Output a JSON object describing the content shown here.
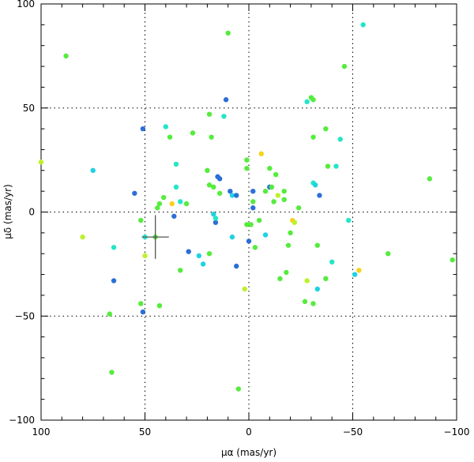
{
  "chart_data": {
    "type": "scatter",
    "title": "",
    "xlabel": "μα (mas/yr)",
    "ylabel": "μδ (mas/yr)",
    "xlim": [
      100,
      -100
    ],
    "ylim": [
      -100,
      100
    ],
    "xticks": [
      "100",
      "50",
      "0",
      "−50",
      "−100"
    ],
    "yticks": [
      "−100",
      "−50",
      "0",
      "50",
      "100"
    ],
    "xtick_values": [
      100,
      50,
      0,
      -50,
      -100
    ],
    "ytick_values": [
      -100,
      -50,
      0,
      50,
      100
    ],
    "grid": "dotted at ±50 and 0",
    "legend": "none",
    "colors": {
      "blue": "#2b6fd6",
      "cyan": "#1fd2e3",
      "aqua": "#22e6c8",
      "green": "#55ec3d",
      "lime": "#bcf22a",
      "yellow": "#f7d21a"
    },
    "marker": {
      "x": 45,
      "y": -12,
      "err_x": 6.5,
      "err_y": 10.5
    },
    "points": [
      {
        "x": 88,
        "y": 75,
        "c": "green"
      },
      {
        "x": 10,
        "y": 86,
        "c": "green"
      },
      {
        "x": -55,
        "y": 90,
        "c": "aqua"
      },
      {
        "x": 100,
        "y": 24,
        "c": "lime"
      },
      {
        "x": 75,
        "y": 20,
        "c": "cyan"
      },
      {
        "x": 80,
        "y": -12,
        "c": "lime"
      },
      {
        "x": 65,
        "y": -17,
        "c": "aqua"
      },
      {
        "x": 65,
        "y": -33,
        "c": "blue"
      },
      {
        "x": 67,
        "y": -49,
        "c": "green"
      },
      {
        "x": 66,
        "y": -77,
        "c": "green"
      },
      {
        "x": 55,
        "y": 9,
        "c": "blue"
      },
      {
        "x": 51,
        "y": 40,
        "c": "blue"
      },
      {
        "x": 52,
        "y": -4,
        "c": "green"
      },
      {
        "x": 50,
        "y": -12,
        "c": "aqua"
      },
      {
        "x": 50,
        "y": -21,
        "c": "lime"
      },
      {
        "x": 52,
        "y": -44,
        "c": "green"
      },
      {
        "x": 51,
        "y": -48,
        "c": "blue"
      },
      {
        "x": 45,
        "y": -12,
        "c": "green"
      },
      {
        "x": 44,
        "y": 2,
        "c": "green"
      },
      {
        "x": 43,
        "y": 4,
        "c": "green"
      },
      {
        "x": 41,
        "y": 7,
        "c": "green"
      },
      {
        "x": 40,
        "y": 41,
        "c": "aqua"
      },
      {
        "x": 38,
        "y": 36,
        "c": "green"
      },
      {
        "x": 37,
        "y": 4,
        "c": "yellow"
      },
      {
        "x": 36,
        "y": -2,
        "c": "blue"
      },
      {
        "x": 35,
        "y": 23,
        "c": "aqua"
      },
      {
        "x": 35,
        "y": 12,
        "c": "aqua"
      },
      {
        "x": 33,
        "y": 5,
        "c": "aqua"
      },
      {
        "x": 33,
        "y": -28,
        "c": "green"
      },
      {
        "x": 43,
        "y": -45,
        "c": "green"
      },
      {
        "x": 30,
        "y": 4,
        "c": "green"
      },
      {
        "x": 29,
        "y": -19,
        "c": "blue"
      },
      {
        "x": 27,
        "y": 38,
        "c": "green"
      },
      {
        "x": 24,
        "y": -21,
        "c": "cyan"
      },
      {
        "x": 22,
        "y": -25,
        "c": "cyan"
      },
      {
        "x": 20,
        "y": 20,
        "c": "green"
      },
      {
        "x": 19,
        "y": 13,
        "c": "green"
      },
      {
        "x": 19,
        "y": 47,
        "c": "green"
      },
      {
        "x": 18,
        "y": 36,
        "c": "green"
      },
      {
        "x": 19,
        "y": -20,
        "c": "green"
      },
      {
        "x": 17,
        "y": -1,
        "c": "cyan"
      },
      {
        "x": 16,
        "y": -5,
        "c": "blue"
      },
      {
        "x": 16,
        "y": -3,
        "c": "aqua"
      },
      {
        "x": 17,
        "y": 12,
        "c": "green"
      },
      {
        "x": 15,
        "y": 17,
        "c": "blue"
      },
      {
        "x": 14,
        "y": 16,
        "c": "blue"
      },
      {
        "x": 14,
        "y": 9,
        "c": "green"
      },
      {
        "x": 12,
        "y": 46,
        "c": "aqua"
      },
      {
        "x": 11,
        "y": 54,
        "c": "blue"
      },
      {
        "x": 9,
        "y": 10,
        "c": "blue"
      },
      {
        "x": 8,
        "y": 8,
        "c": "cyan"
      },
      {
        "x": 8,
        "y": -12,
        "c": "cyan"
      },
      {
        "x": 6,
        "y": 8,
        "c": "blue"
      },
      {
        "x": 6,
        "y": -26,
        "c": "blue"
      },
      {
        "x": 5,
        "y": -85,
        "c": "green"
      },
      {
        "x": 2,
        "y": -37,
        "c": "lime"
      },
      {
        "x": 1,
        "y": 25,
        "c": "green"
      },
      {
        "x": 1,
        "y": 21,
        "c": "green"
      },
      {
        "x": 1,
        "y": -6,
        "c": "green"
      },
      {
        "x": 0,
        "y": -14,
        "c": "blue"
      },
      {
        "x": -1,
        "y": -6,
        "c": "green"
      },
      {
        "x": -2,
        "y": 10,
        "c": "blue"
      },
      {
        "x": -2,
        "y": 5,
        "c": "green"
      },
      {
        "x": -2,
        "y": 2,
        "c": "blue"
      },
      {
        "x": -3,
        "y": -17,
        "c": "green"
      },
      {
        "x": -5,
        "y": -4,
        "c": "green"
      },
      {
        "x": -6,
        "y": 28,
        "c": "yellow"
      },
      {
        "x": -8,
        "y": 10,
        "c": "green"
      },
      {
        "x": -8,
        "y": -11,
        "c": "cyan"
      },
      {
        "x": -10,
        "y": 21,
        "c": "green"
      },
      {
        "x": -10,
        "y": 12,
        "c": "blue"
      },
      {
        "x": -11,
        "y": 12,
        "c": "green"
      },
      {
        "x": -12,
        "y": 5,
        "c": "green"
      },
      {
        "x": -13,
        "y": 18,
        "c": "green"
      },
      {
        "x": -14,
        "y": 8,
        "c": "lime"
      },
      {
        "x": -15,
        "y": -32,
        "c": "green"
      },
      {
        "x": -17,
        "y": 10,
        "c": "green"
      },
      {
        "x": -17,
        "y": 6,
        "c": "green"
      },
      {
        "x": -18,
        "y": -29,
        "c": "green"
      },
      {
        "x": -19,
        "y": -16,
        "c": "green"
      },
      {
        "x": -20,
        "y": -10,
        "c": "green"
      },
      {
        "x": -21,
        "y": -4,
        "c": "yellow"
      },
      {
        "x": -22,
        "y": -5,
        "c": "lime"
      },
      {
        "x": -24,
        "y": 2,
        "c": "green"
      },
      {
        "x": -27,
        "y": -43,
        "c": "green"
      },
      {
        "x": -28,
        "y": -33,
        "c": "lime"
      },
      {
        "x": -28,
        "y": 53,
        "c": "aqua"
      },
      {
        "x": -30,
        "y": 55,
        "c": "green"
      },
      {
        "x": -31,
        "y": 54,
        "c": "green"
      },
      {
        "x": -31,
        "y": 36,
        "c": "green"
      },
      {
        "x": -31,
        "y": 14,
        "c": "aqua"
      },
      {
        "x": -32,
        "y": 13,
        "c": "cyan"
      },
      {
        "x": -31,
        "y": -44,
        "c": "green"
      },
      {
        "x": -33,
        "y": -37,
        "c": "cyan"
      },
      {
        "x": -33,
        "y": -16,
        "c": "green"
      },
      {
        "x": -34,
        "y": 8,
        "c": "blue"
      },
      {
        "x": -37,
        "y": 40,
        "c": "green"
      },
      {
        "x": -37,
        "y": -32,
        "c": "green"
      },
      {
        "x": -38,
        "y": 22,
        "c": "green"
      },
      {
        "x": -40,
        "y": -24,
        "c": "aqua"
      },
      {
        "x": -42,
        "y": 22,
        "c": "aqua"
      },
      {
        "x": -44,
        "y": 35,
        "c": "aqua"
      },
      {
        "x": -46,
        "y": 70,
        "c": "green"
      },
      {
        "x": -48,
        "y": -4,
        "c": "aqua"
      },
      {
        "x": -51,
        "y": -30,
        "c": "cyan"
      },
      {
        "x": -53,
        "y": -28,
        "c": "yellow"
      },
      {
        "x": -67,
        "y": -20,
        "c": "green"
      },
      {
        "x": -87,
        "y": 16,
        "c": "green"
      },
      {
        "x": -98,
        "y": -23,
        "c": "green"
      }
    ]
  }
}
